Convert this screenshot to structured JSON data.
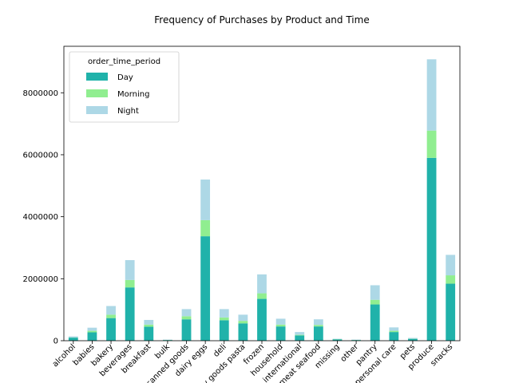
{
  "chart_data": {
    "type": "bar",
    "stacked": true,
    "title": "Frequency of Purchases by Product and Time",
    "xlabel": "",
    "ylabel": "",
    "ylim": [
      0,
      9500000
    ],
    "yticks": [
      0,
      2000000,
      4000000,
      6000000,
      8000000
    ],
    "ytick_labels": [
      "0",
      "2000000",
      "4000000",
      "6000000",
      "8000000"
    ],
    "grid": false,
    "legend": {
      "title": "order_time_period",
      "placement": "top-left"
    },
    "categories": [
      "alcohol",
      "babies",
      "bakery",
      "beverages",
      "breakfast",
      "bulk",
      "canned goods",
      "dairy eggs",
      "deli",
      "dry goods pasta",
      "frozen",
      "household",
      "international",
      "meat seafood",
      "missing",
      "other",
      "pantry",
      "personal care",
      "pets",
      "produce",
      "snacks"
    ],
    "series": [
      {
        "name": "Day",
        "color": "#20b2aa",
        "values": [
          100000,
          270000,
          730000,
          1720000,
          450000,
          22000,
          690000,
          3370000,
          660000,
          560000,
          1350000,
          460000,
          170000,
          460000,
          45000,
          22000,
          1170000,
          280000,
          60000,
          5900000,
          1840000
        ]
      },
      {
        "name": "Morning",
        "color": "#90ee90",
        "values": [
          5000,
          50000,
          110000,
          240000,
          70000,
          3000,
          100000,
          520000,
          90000,
          80000,
          180000,
          60000,
          20000,
          50000,
          5000,
          3000,
          150000,
          40000,
          5000,
          880000,
          270000
        ]
      },
      {
        "name": "Night",
        "color": "#add8e6",
        "values": [
          35000,
          100000,
          280000,
          640000,
          150000,
          10000,
          230000,
          1310000,
          270000,
          200000,
          610000,
          190000,
          90000,
          180000,
          12000,
          10000,
          470000,
          110000,
          25000,
          2300000,
          660000
        ]
      }
    ]
  }
}
